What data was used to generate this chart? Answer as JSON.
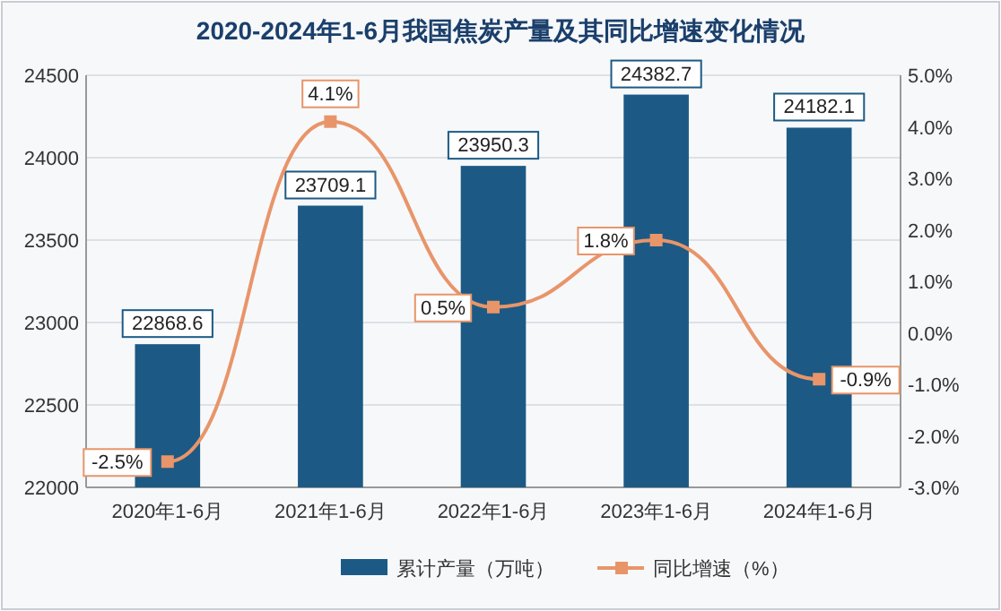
{
  "chart_data": {
    "type": "bar",
    "title": "2020-2024年1-6月我国焦炭产量及其同比增速变化情况",
    "categories": [
      "2020年1-6月",
      "2021年1-6月",
      "2022年1-6月",
      "2023年1-6月",
      "2024年1-6月"
    ],
    "series": [
      {
        "name": "累计产量（万吨）",
        "color": "#1c5a85",
        "values": [
          22868.6,
          23709.1,
          23950.3,
          24382.7,
          24182.1
        ],
        "data_labels": true
      },
      {
        "name": "同比增速（%）",
        "type": "line",
        "axis": "y2",
        "color": "#e8956a",
        "marker": "square",
        "values": [
          -2.5,
          4.1,
          0.5,
          1.8,
          -0.9
        ],
        "value_labels": [
          "-2.5%",
          "4.1%",
          "0.5%",
          "1.8%",
          "-0.9%"
        ]
      }
    ],
    "ylim": [
      22000,
      24500
    ],
    "yticks": [
      22000,
      22500,
      23000,
      23500,
      24000,
      24500
    ],
    "y2lim": [
      -3,
      5
    ],
    "y2ticks": [
      {
        "value": -3,
        "label": "-3.0%"
      },
      {
        "value": -2,
        "label": "-2.0%"
      },
      {
        "value": -1,
        "label": "-1.0%"
      },
      {
        "value": 0,
        "label": "0.0%"
      },
      {
        "value": 1,
        "label": "1.0%"
      },
      {
        "value": 2,
        "label": "2.0%"
      },
      {
        "value": 3,
        "label": "3.0%"
      },
      {
        "value": 4,
        "label": "4.0%"
      },
      {
        "value": 5,
        "label": "5.0%"
      }
    ],
    "grid": "y",
    "legend": "bottom"
  }
}
